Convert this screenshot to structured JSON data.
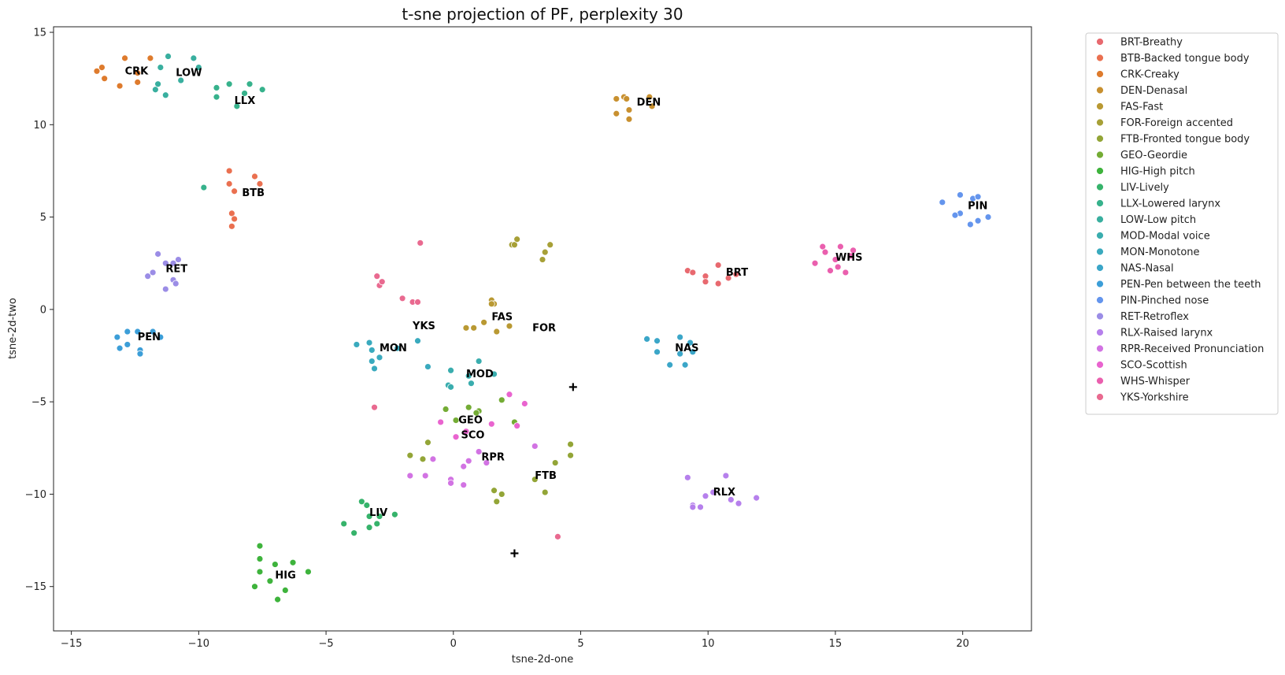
{
  "chart_data": {
    "type": "scatter",
    "title": "t-sne projection of PF, perplexity 30",
    "xlabel": "tsne-2d-one",
    "ylabel": "tsne-2d-two",
    "xlim": [
      -15.7,
      22.7
    ],
    "ylim": [
      -17.4,
      15.3
    ],
    "xticks": [
      -15,
      -10,
      -5,
      0,
      5,
      10,
      15,
      20
    ],
    "yticks": [
      -15,
      -10,
      -5,
      0,
      5,
      10,
      15
    ],
    "xtick_labels": [
      "−15",
      "−10",
      "−5",
      "0",
      "5",
      "10",
      "15",
      "20"
    ],
    "ytick_labels": [
      "−15",
      "−10",
      "−5",
      "0",
      "5",
      "10",
      "15"
    ],
    "grid": false,
    "legend_position": "outside-right",
    "series": [
      {
        "name": "BRT-Breathy",
        "color": "#e8696f",
        "label": "BRT",
        "label_pos": [
          10.7,
          2.0
        ],
        "points": [
          [
            9.2,
            2.1
          ],
          [
            9.4,
            2.0
          ],
          [
            9.9,
            1.8
          ],
          [
            9.9,
            1.5
          ],
          [
            10.4,
            2.4
          ],
          [
            10.4,
            1.4
          ],
          [
            10.8,
            1.7
          ],
          [
            11.1,
            1.9
          ]
        ]
      },
      {
        "name": "BTB-Backed tongue body",
        "color": "#ea7050",
        "label": "BTB",
        "label_pos": [
          -8.3,
          6.3
        ],
        "points": [
          [
            -8.8,
            7.5
          ],
          [
            -8.8,
            6.8
          ],
          [
            -8.6,
            6.4
          ],
          [
            -7.8,
            7.2
          ],
          [
            -7.6,
            6.8
          ],
          [
            -8.7,
            5.2
          ],
          [
            -8.6,
            4.9
          ],
          [
            -8.7,
            4.5
          ]
        ]
      },
      {
        "name": "CRK-Creaky",
        "color": "#de7b2d",
        "label": "CRK",
        "label_pos": [
          -12.9,
          12.9
        ],
        "points": [
          [
            -14.0,
            12.9
          ],
          [
            -13.8,
            13.1
          ],
          [
            -13.7,
            12.5
          ],
          [
            -13.1,
            12.1
          ],
          [
            -12.9,
            13.6
          ],
          [
            -12.4,
            12.8
          ],
          [
            -12.4,
            12.3
          ],
          [
            -11.9,
            13.6
          ]
        ]
      },
      {
        "name": "DEN-Denasal",
        "color": "#c8902f",
        "label": "DEN",
        "label_pos": [
          7.2,
          11.2
        ],
        "points": [
          [
            6.4,
            11.4
          ],
          [
            6.4,
            10.6
          ],
          [
            6.7,
            11.5
          ],
          [
            6.8,
            11.4
          ],
          [
            6.9,
            10.8
          ],
          [
            6.9,
            10.3
          ],
          [
            7.7,
            11.5
          ],
          [
            7.8,
            11.0
          ]
        ]
      },
      {
        "name": "FAS-Fast",
        "color": "#b99933",
        "label": "FAS",
        "label_pos": [
          1.5,
          -0.4
        ],
        "points": [
          [
            0.5,
            -1.0
          ],
          [
            0.8,
            -1.0
          ],
          [
            1.2,
            -0.7
          ],
          [
            1.5,
            0.5
          ],
          [
            1.6,
            0.3
          ],
          [
            1.7,
            -1.2
          ],
          [
            2.2,
            -0.9
          ],
          [
            1.5,
            0.3
          ]
        ]
      },
      {
        "name": "FOR-Foreign accented",
        "color": "#a7a037",
        "label": "FOR",
        "label_pos": [
          3.1,
          -1.0
        ],
        "points": [
          [
            2.3,
            3.5
          ],
          [
            2.4,
            3.5
          ],
          [
            2.5,
            3.8
          ],
          [
            3.5,
            2.7
          ],
          [
            3.6,
            3.1
          ],
          [
            3.8,
            3.5
          ]
        ]
      },
      {
        "name": "FTB-Fronted tongue body",
        "color": "#93a537",
        "label": "FTB",
        "label_pos": [
          3.2,
          -9.0
        ],
        "points": [
          [
            3.2,
            -9.2
          ],
          [
            3.6,
            -9.9
          ],
          [
            4.0,
            -8.3
          ],
          [
            4.6,
            -7.3
          ],
          [
            4.6,
            -7.9
          ],
          [
            1.6,
            -9.8
          ],
          [
            1.9,
            -10.0
          ],
          [
            1.7,
            -10.4
          ],
          [
            -1.7,
            -7.9
          ],
          [
            -1.2,
            -8.1
          ],
          [
            -1.0,
            -7.2
          ]
        ]
      },
      {
        "name": "GEO-Geordie",
        "color": "#74ac35",
        "label": "GEO",
        "label_pos": [
          0.2,
          -6.0
        ],
        "points": [
          [
            -0.3,
            -5.4
          ],
          [
            0.1,
            -6.0
          ],
          [
            0.6,
            -5.3
          ],
          [
            1.0,
            -5.5
          ],
          [
            1.9,
            -4.9
          ],
          [
            2.4,
            -6.1
          ],
          [
            0.9,
            -5.6
          ]
        ]
      },
      {
        "name": "HIG-High pitch",
        "color": "#3eb33c",
        "label": "HIG",
        "label_pos": [
          -7.0,
          -14.4
        ],
        "points": [
          [
            -7.6,
            -12.8
          ],
          [
            -7.6,
            -13.5
          ],
          [
            -7.0,
            -13.8
          ],
          [
            -6.3,
            -13.7
          ],
          [
            -5.7,
            -14.2
          ],
          [
            -7.6,
            -14.2
          ],
          [
            -7.2,
            -14.7
          ],
          [
            -7.8,
            -15.0
          ],
          [
            -6.6,
            -15.2
          ],
          [
            -6.9,
            -15.7
          ]
        ]
      },
      {
        "name": "LIV-Lively",
        "color": "#36b36b",
        "label": "LIV",
        "label_pos": [
          -3.3,
          -11.0
        ],
        "points": [
          [
            -3.6,
            -10.4
          ],
          [
            -3.4,
            -10.6
          ],
          [
            -3.3,
            -11.2
          ],
          [
            -2.9,
            -11.2
          ],
          [
            -2.3,
            -11.1
          ],
          [
            -4.3,
            -11.6
          ],
          [
            -3.9,
            -12.1
          ],
          [
            -3.3,
            -11.8
          ],
          [
            -3.0,
            -11.6
          ]
        ]
      },
      {
        "name": "LLX-Lowered larynx",
        "color": "#37b28c",
        "label": "LLX",
        "label_pos": [
          -8.6,
          11.3
        ],
        "points": [
          [
            -9.3,
            12.0
          ],
          [
            -8.8,
            12.2
          ],
          [
            -8.2,
            11.7
          ],
          [
            -8.0,
            12.2
          ],
          [
            -7.5,
            11.9
          ],
          [
            -9.3,
            11.5
          ],
          [
            -8.5,
            11.0
          ],
          [
            -9.8,
            6.6
          ]
        ]
      },
      {
        "name": "LOW-Low pitch",
        "color": "#39af9f",
        "label": "LOW",
        "label_pos": [
          -10.9,
          12.8
        ],
        "points": [
          [
            -11.6,
            12.2
          ],
          [
            -11.7,
            11.9
          ],
          [
            -11.3,
            11.6
          ],
          [
            -11.5,
            13.1
          ],
          [
            -11.2,
            13.7
          ],
          [
            -10.2,
            13.6
          ],
          [
            -10.0,
            13.1
          ],
          [
            -10.7,
            12.4
          ]
        ]
      },
      {
        "name": "MOD-Modal voice",
        "color": "#3aadae",
        "label": "MOD",
        "label_pos": [
          0.5,
          -3.5
        ],
        "points": [
          [
            -0.1,
            -3.3
          ],
          [
            -0.2,
            -4.1
          ],
          [
            -0.1,
            -4.2
          ],
          [
            0.6,
            -3.6
          ],
          [
            0.7,
            -4.0
          ],
          [
            1.0,
            -2.8
          ],
          [
            1.6,
            -3.5
          ]
        ]
      },
      {
        "name": "MON-Monotone",
        "color": "#3aaabe",
        "label": "MON",
        "label_pos": [
          -2.9,
          -2.1
        ],
        "points": [
          [
            -3.8,
            -1.9
          ],
          [
            -3.3,
            -1.8
          ],
          [
            -3.2,
            -2.2
          ],
          [
            -2.9,
            -2.6
          ],
          [
            -3.2,
            -2.8
          ],
          [
            -3.1,
            -3.2
          ],
          [
            -2.2,
            -2.1
          ],
          [
            -1.4,
            -1.7
          ],
          [
            -1.0,
            -3.1
          ]
        ]
      },
      {
        "name": "NAS-Nasal",
        "color": "#3ba6c8",
        "label": "NAS",
        "label_pos": [
          8.7,
          -2.1
        ],
        "points": [
          [
            7.6,
            -1.6
          ],
          [
            8.0,
            -1.7
          ],
          [
            8.0,
            -2.3
          ],
          [
            8.9,
            -1.5
          ],
          [
            9.3,
            -1.8
          ],
          [
            9.4,
            -2.3
          ],
          [
            8.9,
            -2.4
          ],
          [
            8.5,
            -3.0
          ],
          [
            9.1,
            -3.0
          ]
        ]
      },
      {
        "name": "PEN-Pen between the teeth",
        "color": "#3c9ed8",
        "label": "PEN",
        "label_pos": [
          -12.4,
          -1.5
        ],
        "points": [
          [
            -13.2,
            -1.5
          ],
          [
            -12.8,
            -1.2
          ],
          [
            -12.4,
            -1.2
          ],
          [
            -13.1,
            -2.1
          ],
          [
            -12.8,
            -1.9
          ],
          [
            -12.3,
            -2.2
          ],
          [
            -12.3,
            -2.4
          ],
          [
            -11.5,
            -1.5
          ],
          [
            -11.8,
            -1.2
          ]
        ]
      },
      {
        "name": "PIN-Pinched nose",
        "color": "#6495ed",
        "label": "PIN",
        "label_pos": [
          20.2,
          5.6
        ],
        "points": [
          [
            19.2,
            5.8
          ],
          [
            19.9,
            6.2
          ],
          [
            19.9,
            5.2
          ],
          [
            19.7,
            5.1
          ],
          [
            20.4,
            6.0
          ],
          [
            20.6,
            6.1
          ],
          [
            20.3,
            4.6
          ],
          [
            20.6,
            4.8
          ],
          [
            21.0,
            5.0
          ]
        ]
      },
      {
        "name": "RET-Retroflex",
        "color": "#9b8de6",
        "label": "RET",
        "label_pos": [
          -11.3,
          2.2
        ],
        "points": [
          [
            -12.0,
            1.8
          ],
          [
            -11.8,
            2.0
          ],
          [
            -11.6,
            3.0
          ],
          [
            -11.3,
            2.5
          ],
          [
            -11.0,
            2.5
          ],
          [
            -10.8,
            2.7
          ],
          [
            -11.3,
            1.1
          ],
          [
            -11.0,
            1.6
          ],
          [
            -10.9,
            1.4
          ]
        ]
      },
      {
        "name": "RLX-Raised larynx",
        "color": "#b680ec",
        "label": "RLX",
        "label_pos": [
          10.2,
          -9.9
        ],
        "points": [
          [
            9.2,
            -9.1
          ],
          [
            9.9,
            -10.1
          ],
          [
            9.4,
            -10.6
          ],
          [
            9.7,
            -10.7
          ],
          [
            10.2,
            -9.9
          ],
          [
            10.9,
            -10.3
          ],
          [
            11.2,
            -10.5
          ],
          [
            10.7,
            -9.0
          ],
          [
            11.9,
            -10.2
          ],
          [
            9.4,
            -10.7
          ]
        ]
      },
      {
        "name": "RPR-Received Pronunciation",
        "color": "#d273e3",
        "label": "RPR",
        "label_pos": [
          1.1,
          -8.0
        ],
        "points": [
          [
            -1.7,
            -9.0
          ],
          [
            -1.1,
            -9.0
          ],
          [
            -0.8,
            -8.1
          ],
          [
            -0.1,
            -9.2
          ],
          [
            -0.1,
            -9.4
          ],
          [
            0.4,
            -9.5
          ],
          [
            0.6,
            -8.2
          ],
          [
            1.0,
            -7.7
          ],
          [
            1.3,
            -8.3
          ],
          [
            0.4,
            -8.5
          ],
          [
            3.2,
            -7.4
          ]
        ]
      },
      {
        "name": "SCO-Scottish",
        "color": "#e964cf",
        "label": "SCO",
        "label_pos": [
          0.3,
          -6.8
        ],
        "points": [
          [
            -0.5,
            -6.1
          ],
          [
            0.5,
            -6.6
          ],
          [
            0.1,
            -6.9
          ],
          [
            1.5,
            -6.2
          ],
          [
            2.5,
            -6.3
          ],
          [
            2.2,
            -4.6
          ],
          [
            2.8,
            -5.1
          ]
        ]
      },
      {
        "name": "WHS-Whisper",
        "color": "#ea5fae",
        "label": "WHS",
        "label_pos": [
          15.0,
          2.8
        ],
        "points": [
          [
            14.2,
            2.5
          ],
          [
            14.5,
            3.4
          ],
          [
            14.6,
            3.1
          ],
          [
            15.0,
            2.7
          ],
          [
            15.2,
            3.4
          ],
          [
            15.7,
            3.2
          ],
          [
            15.6,
            2.9
          ],
          [
            15.1,
            2.3
          ],
          [
            15.4,
            2.0
          ],
          [
            14.8,
            2.1
          ]
        ]
      },
      {
        "name": "YKS-Yorkshire",
        "color": "#e96a90",
        "label": "YKS",
        "label_pos": [
          -1.6,
          -0.9
        ],
        "points": [
          [
            -3.0,
            1.8
          ],
          [
            -2.9,
            1.3
          ],
          [
            -2.8,
            1.5
          ],
          [
            -1.3,
            3.6
          ],
          [
            -2.0,
            0.6
          ],
          [
            -1.6,
            0.4
          ],
          [
            -1.4,
            0.4
          ],
          [
            -3.1,
            -5.3
          ],
          [
            4.1,
            -12.3
          ]
        ]
      }
    ],
    "markers_plus": [
      [
        4.7,
        -4.2
      ],
      [
        2.4,
        -13.2
      ]
    ]
  }
}
